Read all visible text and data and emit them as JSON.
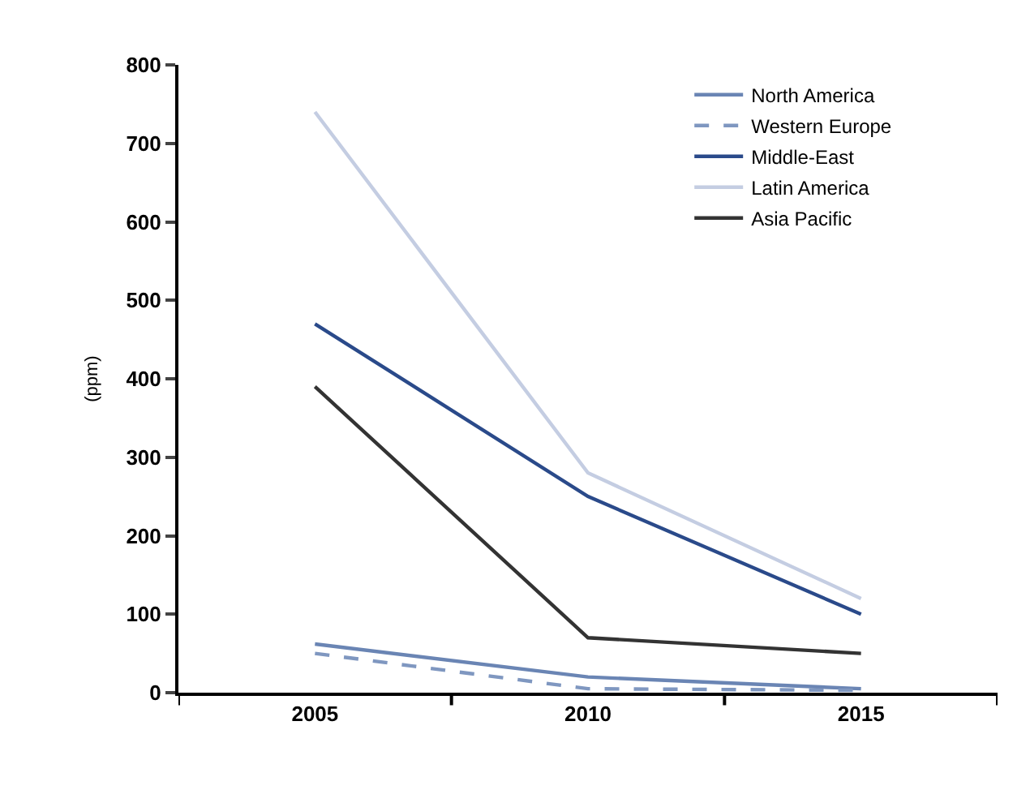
{
  "chart_data": {
    "type": "line",
    "ylabel": "(ppm)",
    "categories": [
      "2005",
      "2010",
      "2015"
    ],
    "ylim": [
      0,
      800
    ],
    "yticks": [
      0,
      100,
      200,
      300,
      400,
      500,
      600,
      700,
      800
    ],
    "legend": "top right",
    "marker": "none",
    "series": [
      {
        "name": "North America",
        "color": "#6a85b4",
        "values": [
          62,
          20,
          5
        ]
      },
      {
        "name": "Western Europe",
        "color": "#7f97c0",
        "values": [
          50,
          5,
          3
        ],
        "line_style": "dashed"
      },
      {
        "name": "Middle-East",
        "color": "#2a4a8a",
        "values": [
          470,
          250,
          100
        ]
      },
      {
        "name": "Latin America",
        "color": "#c4cde2",
        "values": [
          740,
          280,
          120
        ]
      },
      {
        "name": "Asia Pacific",
        "color": "#333333",
        "values": [
          390,
          70,
          50
        ]
      }
    ]
  }
}
